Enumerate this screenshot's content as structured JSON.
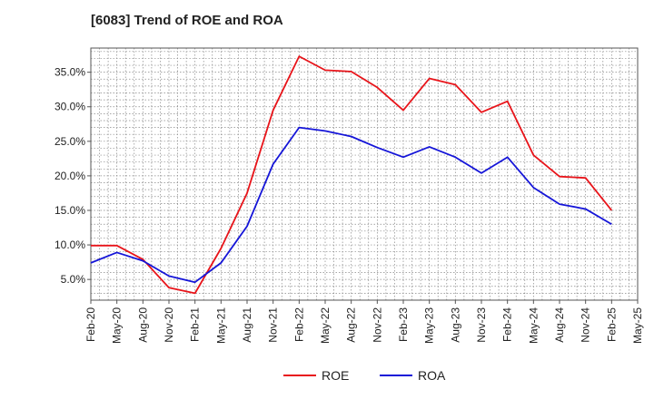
{
  "chart_data": {
    "type": "line",
    "title": "[6083]  Trend of ROE and ROA",
    "xlabel": "",
    "ylabel": "",
    "categories": [
      "Feb-20",
      "May-20",
      "Aug-20",
      "Nov-20",
      "Feb-21",
      "May-21",
      "Aug-21",
      "Nov-21",
      "Feb-22",
      "May-22",
      "Aug-22",
      "Nov-22",
      "Feb-23",
      "May-23",
      "Aug-23",
      "Nov-23",
      "Feb-24",
      "May-24",
      "Aug-24",
      "Nov-24",
      "Feb-25",
      "May-25"
    ],
    "ylim": [
      2.0,
      38.5
    ],
    "yticks": [
      5.0,
      10.0,
      15.0,
      20.0,
      25.0,
      30.0,
      35.0
    ],
    "ytick_labels": [
      "5.0%",
      "10.0%",
      "15.0%",
      "20.0%",
      "25.0%",
      "30.0%",
      "35.0%"
    ],
    "grid": true,
    "legend_position": "bottom-center",
    "series": [
      {
        "name": "ROE",
        "color": "#e8141a",
        "values": [
          9.9,
          9.9,
          7.9,
          3.8,
          3.0,
          9.5,
          17.5,
          29.5,
          37.3,
          35.3,
          35.1,
          32.8,
          29.5,
          34.1,
          33.2,
          29.2,
          30.8,
          23.0,
          19.9,
          19.7,
          15.0,
          null
        ]
      },
      {
        "name": "ROA",
        "color": "#1515d8",
        "values": [
          7.4,
          8.9,
          7.7,
          5.5,
          4.6,
          7.4,
          12.7,
          21.7,
          27.0,
          26.5,
          25.7,
          24.1,
          22.7,
          24.2,
          22.7,
          20.4,
          22.7,
          18.3,
          15.9,
          15.2,
          13.0,
          null
        ]
      }
    ]
  }
}
